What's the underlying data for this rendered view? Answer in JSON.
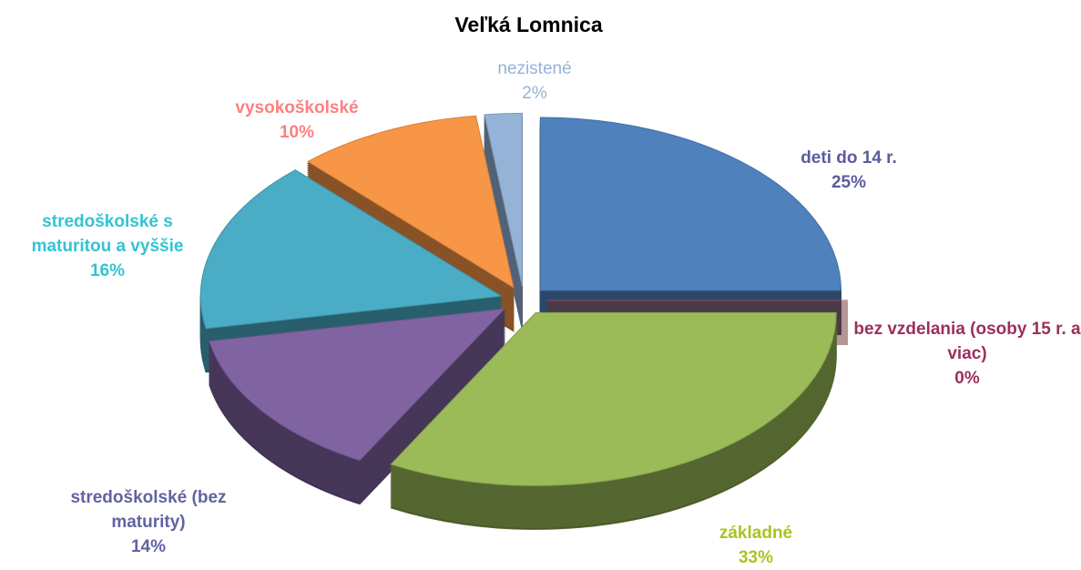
{
  "chart_data": {
    "type": "pie",
    "title": "Veľká Lomnica",
    "categories": [
      "deti do 14 r.",
      "bez vzdelania (osoby 15 r. a viac)",
      "základné",
      "stredoškolské (bez maturity)",
      "stredoškolské s maturitou a vyššie",
      "vysokoškolské",
      "nezistené"
    ],
    "values": [
      25,
      0,
      33,
      14,
      16,
      10,
      2
    ],
    "value_labels": [
      "25%",
      "0%",
      "33%",
      "14%",
      "16%",
      "10%",
      "2%"
    ],
    "colors": [
      "#4f81bd",
      "#c0504d",
      "#9bbb59",
      "#8064a2",
      "#4bacc6",
      "#f79646",
      "#95b3d7"
    ],
    "label_colors": [
      "#5b5ba0",
      "#9c2f5c",
      "#a7c520",
      "#6262a2",
      "#33c3d3",
      "#ff7f7f",
      "#95b3d7"
    ]
  }
}
